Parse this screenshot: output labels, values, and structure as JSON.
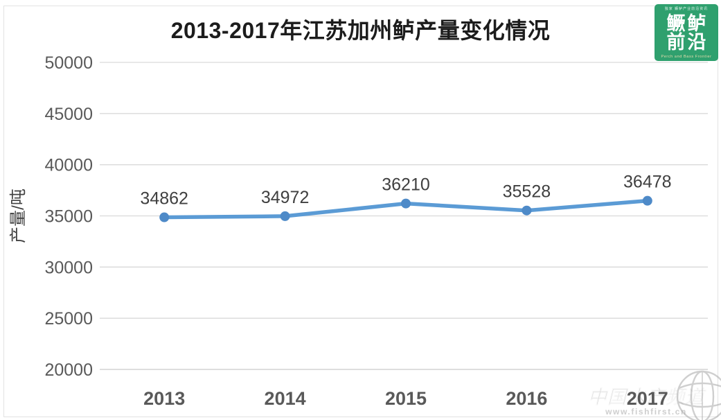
{
  "title": "2013-2017年江苏加州鲈产量变化情况",
  "logo": {
    "line1": "鳜鲈",
    "line2": "前沿",
    "top_tagline": "独家 鳜鲈产业前沿资讯",
    "bottom_tagline": "Perch and Bass Frontier",
    "bg_color": "#2fa06e"
  },
  "watermark": {
    "name": "中国水产频道",
    "url": "www.fishfirst.cn",
    "icon": "globe-wireframe-icon"
  },
  "chart_data": {
    "type": "line",
    "categories": [
      "2013",
      "2014",
      "2015",
      "2016",
      "2017"
    ],
    "values": [
      34862,
      34972,
      36210,
      35528,
      36478
    ],
    "data_labels": [
      "34862",
      "34972",
      "36210",
      "35528",
      "36478"
    ],
    "title": "2013-2017年江苏加州鲈产量变化情况",
    "xlabel": "",
    "ylabel": "产量/吨",
    "ylim": [
      20000,
      50000
    ],
    "yticks": [
      20000,
      25000,
      30000,
      35000,
      40000,
      45000,
      50000
    ],
    "grid": true,
    "legend": "none",
    "line_color": "#5b9bd5",
    "marker_color": "#4e8ac8",
    "grid_color": "#d9d9d9",
    "axis_text_color": "#595959",
    "label_text_color": "#3f3f3f"
  }
}
